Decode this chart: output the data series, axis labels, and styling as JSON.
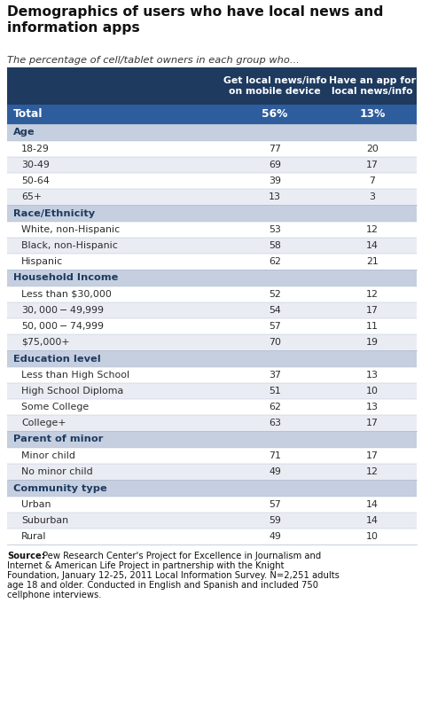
{
  "title": "Demographics of users who have local news and\ninformation apps",
  "subtitle": "The percentage of cell/tablet owners in each group who...",
  "col1_header": "Get local news/info\non mobile device",
  "col2_header": "Have an app for\nlocal news/info",
  "header_bg": "#1e3a5f",
  "header_text_color": "#ffffff",
  "total_row": {
    "label": "Total",
    "val1": "56%",
    "val2": "13%",
    "bg": "#2e5d9e",
    "text_color": "#ffffff"
  },
  "sections": [
    {
      "section_label": "Age",
      "section_bg": "#c5cfe0",
      "rows": [
        {
          "label": "18-29",
          "val1": "77",
          "val2": "20"
        },
        {
          "label": "30-49",
          "val1": "69",
          "val2": "17"
        },
        {
          "label": "50-64",
          "val1": "39",
          "val2": "7"
        },
        {
          "label": "65+",
          "val1": "13",
          "val2": "3"
        }
      ]
    },
    {
      "section_label": "Race/Ethnicity",
      "section_bg": "#c5cfe0",
      "rows": [
        {
          "label": "White, non-Hispanic",
          "val1": "53",
          "val2": "12"
        },
        {
          "label": "Black, non-Hispanic",
          "val1": "58",
          "val2": "14"
        },
        {
          "label": "Hispanic",
          "val1": "62",
          "val2": "21"
        }
      ]
    },
    {
      "section_label": "Household Income",
      "section_bg": "#c5cfe0",
      "rows": [
        {
          "label": "Less than $30,000",
          "val1": "52",
          "val2": "12"
        },
        {
          "label": "$30,000-$49,999",
          "val1": "54",
          "val2": "17"
        },
        {
          "label": "$50,000-$74,999",
          "val1": "57",
          "val2": "11"
        },
        {
          "label": "$75,000+",
          "val1": "70",
          "val2": "19"
        }
      ]
    },
    {
      "section_label": "Education level",
      "section_bg": "#c5cfe0",
      "rows": [
        {
          "label": "Less than High School",
          "val1": "37",
          "val2": "13"
        },
        {
          "label": "High School Diploma",
          "val1": "51",
          "val2": "10"
        },
        {
          "label": "Some College",
          "val1": "62",
          "val2": "13"
        },
        {
          "label": "College+",
          "val1": "63",
          "val2": "17"
        }
      ]
    },
    {
      "section_label": "Parent of minor",
      "section_bg": "#c5cfe0",
      "rows": [
        {
          "label": "Minor child",
          "val1": "71",
          "val2": "17"
        },
        {
          "label": "No minor child",
          "val1": "49",
          "val2": "12"
        }
      ]
    },
    {
      "section_label": "Community type",
      "section_bg": "#c5cfe0",
      "rows": [
        {
          "label": "Urban",
          "val1": "57",
          "val2": "14"
        },
        {
          "label": "Suburban",
          "val1": "59",
          "val2": "14"
        },
        {
          "label": "Rural",
          "val1": "49",
          "val2": "10"
        }
      ]
    }
  ],
  "source_bold": "Source:",
  "source_text": " Pew Research Center's Project for Excellence in Journalism and Internet & American Life Project in partnership with the Knight Foundation, January 12-25, 2011 Local Information Survey. N=2,251 adults age 18 and older. Conducted in English and Spanish and included 750 cellphone interviews.",
  "row_odd_bg": "#ffffff",
  "row_even_bg": "#eaecf4",
  "data_text_color": "#2c2c2c",
  "section_text_color": "#1e3a5f",
  "divider_color": "#b0bcd0",
  "fig_w": 4.76,
  "fig_h": 7.95,
  "dpi": 100
}
